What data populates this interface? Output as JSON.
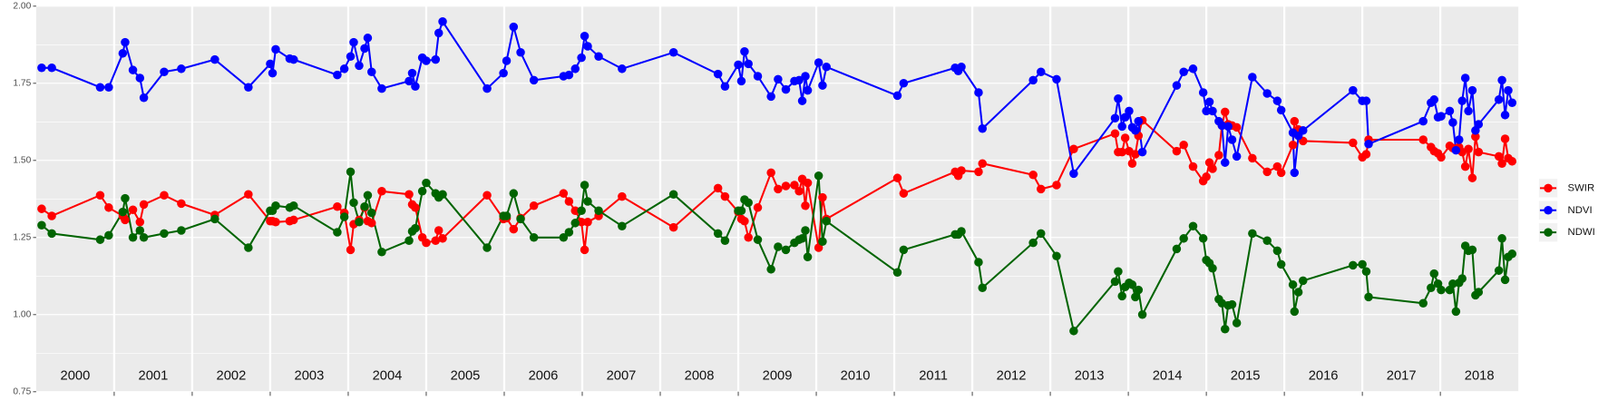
{
  "chart_data": {
    "type": "line",
    "x": [
      2000.07,
      2000.2,
      2000.82,
      2000.93,
      2001.11,
      2001.14,
      2001.24,
      2001.33,
      2001.38,
      2001.64,
      2001.86,
      2002.29,
      2002.72,
      2003.0,
      2003.03,
      2003.07,
      2003.25,
      2003.3,
      2003.86,
      2003.95,
      2004.03,
      2004.07,
      2004.14,
      2004.21,
      2004.25,
      2004.3,
      2004.43,
      2004.78,
      2004.82,
      2004.86,
      2004.95,
      2005.0,
      2005.12,
      2005.16,
      2005.21,
      2005.78,
      2005.99,
      2006.03,
      2006.12,
      2006.21,
      2006.38,
      2006.76,
      2006.83,
      2006.91,
      2006.99,
      2007.03,
      2007.07,
      2007.21,
      2007.51,
      2008.17,
      2008.74,
      2008.83,
      2009.0,
      2009.04,
      2009.08,
      2009.13,
      2009.25,
      2009.42,
      2009.51,
      2009.61,
      2009.72,
      2009.78,
      2009.82,
      2009.86,
      2009.89,
      2010.03,
      2010.08,
      2010.13,
      2011.04,
      2011.12,
      2011.78,
      2011.82,
      2011.86,
      2012.08,
      2012.13,
      2012.78,
      2012.88,
      2013.08,
      2013.3,
      2013.83,
      2013.87,
      2013.92,
      2013.96,
      2014.01,
      2014.05,
      2014.09,
      2014.13,
      2014.18,
      2014.62,
      2014.71,
      2014.83,
      2014.96,
      2015.0,
      2015.04,
      2015.08,
      2015.16,
      2015.2,
      2015.24,
      2015.28,
      2015.33,
      2015.39,
      2015.59,
      2015.78,
      2015.91,
      2015.96,
      2016.11,
      2016.13,
      2016.18,
      2016.24,
      2016.88,
      2017.0,
      2017.05,
      2017.08,
      2017.78,
      2017.88,
      2017.92,
      2017.97,
      2018.01,
      2018.12,
      2018.16,
      2018.2,
      2018.24,
      2018.28,
      2018.32,
      2018.36,
      2018.41,
      2018.45,
      2018.49,
      2018.75,
      2018.79,
      2018.83,
      2018.87,
      2018.92
    ],
    "series": [
      {
        "name": "SWIR",
        "color": "#ff0000",
        "values": [
          1.343,
          1.32,
          1.387,
          1.347,
          1.32,
          1.307,
          1.34,
          1.3,
          1.357,
          1.387,
          1.36,
          1.323,
          1.39,
          1.303,
          1.303,
          1.3,
          1.303,
          1.307,
          1.35,
          1.33,
          1.21,
          1.293,
          1.307,
          1.347,
          1.303,
          1.297,
          1.4,
          1.39,
          1.357,
          1.347,
          1.25,
          1.233,
          1.24,
          1.273,
          1.247,
          1.387,
          1.31,
          1.313,
          1.277,
          1.313,
          1.353,
          1.393,
          1.367,
          1.337,
          1.3,
          1.21,
          1.3,
          1.32,
          1.383,
          1.283,
          1.41,
          1.383,
          1.333,
          1.31,
          1.303,
          1.25,
          1.347,
          1.46,
          1.407,
          1.417,
          1.42,
          1.4,
          1.44,
          1.353,
          1.427,
          1.217,
          1.38,
          1.31,
          1.443,
          1.393,
          1.463,
          1.45,
          1.467,
          1.463,
          1.49,
          1.453,
          1.407,
          1.42,
          1.537,
          1.587,
          1.527,
          1.527,
          1.573,
          1.53,
          1.49,
          1.52,
          1.58,
          1.63,
          1.53,
          1.55,
          1.48,
          1.433,
          1.447,
          1.493,
          1.473,
          1.517,
          1.613,
          1.657,
          1.617,
          1.613,
          1.607,
          1.507,
          1.463,
          1.48,
          1.46,
          1.55,
          1.627,
          1.6,
          1.563,
          1.557,
          1.51,
          1.52,
          1.567,
          1.567,
          1.543,
          1.53,
          1.523,
          1.51,
          1.547,
          1.54,
          1.537,
          1.543,
          1.527,
          1.48,
          1.537,
          1.443,
          1.577,
          1.527,
          1.513,
          1.49,
          1.57,
          1.507,
          1.497
        ]
      },
      {
        "name": "NDVI",
        "color": "#0000ff",
        "values": [
          1.8,
          1.8,
          1.737,
          1.737,
          1.847,
          1.883,
          1.793,
          1.767,
          1.703,
          1.787,
          1.797,
          1.827,
          1.737,
          1.813,
          1.783,
          1.86,
          1.83,
          1.827,
          1.777,
          1.797,
          1.837,
          1.883,
          1.807,
          1.863,
          1.897,
          1.787,
          1.733,
          1.757,
          1.783,
          1.74,
          1.833,
          1.823,
          1.827,
          1.913,
          1.95,
          1.733,
          1.783,
          1.823,
          1.933,
          1.85,
          1.76,
          1.773,
          1.777,
          1.797,
          1.833,
          1.903,
          1.87,
          1.837,
          1.797,
          1.85,
          1.78,
          1.74,
          1.81,
          1.757,
          1.853,
          1.813,
          1.773,
          1.707,
          1.763,
          1.73,
          1.757,
          1.76,
          1.693,
          1.773,
          1.727,
          1.817,
          1.743,
          1.803,
          1.71,
          1.75,
          1.8,
          1.79,
          1.803,
          1.72,
          1.603,
          1.76,
          1.787,
          1.763,
          1.457,
          1.637,
          1.7,
          1.61,
          1.64,
          1.66,
          1.607,
          1.597,
          1.627,
          1.527,
          1.743,
          1.787,
          1.797,
          1.72,
          1.66,
          1.69,
          1.66,
          1.627,
          1.613,
          1.493,
          1.61,
          1.567,
          1.513,
          1.77,
          1.717,
          1.693,
          1.663,
          1.59,
          1.46,
          1.58,
          1.597,
          1.727,
          1.693,
          1.693,
          1.553,
          1.627,
          1.687,
          1.697,
          1.64,
          1.643,
          1.66,
          1.623,
          1.533,
          1.567,
          1.693,
          1.767,
          1.66,
          1.727,
          1.597,
          1.617,
          1.697,
          1.76,
          1.647,
          1.727,
          1.687
        ]
      },
      {
        "name": "NDWI",
        "color": "#006400",
        "values": [
          1.29,
          1.263,
          1.243,
          1.257,
          1.333,
          1.377,
          1.25,
          1.273,
          1.25,
          1.263,
          1.273,
          1.31,
          1.217,
          1.337,
          1.337,
          1.353,
          1.347,
          1.353,
          1.267,
          1.317,
          1.463,
          1.363,
          1.3,
          1.35,
          1.387,
          1.33,
          1.203,
          1.24,
          1.27,
          1.28,
          1.4,
          1.427,
          1.393,
          1.38,
          1.39,
          1.217,
          1.32,
          1.32,
          1.393,
          1.31,
          1.25,
          1.25,
          1.267,
          1.297,
          1.337,
          1.42,
          1.367,
          1.337,
          1.287,
          1.39,
          1.263,
          1.24,
          1.337,
          1.337,
          1.373,
          1.363,
          1.243,
          1.147,
          1.22,
          1.21,
          1.233,
          1.243,
          1.247,
          1.273,
          1.187,
          1.45,
          1.237,
          1.303,
          1.137,
          1.21,
          1.26,
          1.26,
          1.27,
          1.17,
          1.087,
          1.233,
          1.263,
          1.19,
          0.947,
          1.107,
          1.14,
          1.06,
          1.09,
          1.103,
          1.097,
          1.057,
          1.08,
          1.0,
          1.213,
          1.247,
          1.287,
          1.247,
          1.177,
          1.167,
          1.15,
          1.05,
          1.037,
          0.953,
          1.03,
          1.033,
          0.973,
          1.263,
          1.24,
          1.207,
          1.163,
          1.097,
          1.01,
          1.073,
          1.11,
          1.16,
          1.163,
          1.14,
          1.057,
          1.037,
          1.087,
          1.133,
          1.1,
          1.08,
          1.08,
          1.1,
          1.01,
          1.103,
          1.117,
          1.223,
          1.207,
          1.21,
          1.063,
          1.073,
          1.143,
          1.247,
          1.113,
          1.187,
          1.197
        ]
      }
    ],
    "xlim": [
      2000,
      2019
    ],
    "xticks": [
      {
        "value": 2000.5,
        "label": "2000"
      },
      {
        "value": 2001.5,
        "label": "2001"
      },
      {
        "value": 2002.5,
        "label": "2002"
      },
      {
        "value": 2003.5,
        "label": "2003"
      },
      {
        "value": 2004.5,
        "label": "2004"
      },
      {
        "value": 2005.5,
        "label": "2005"
      },
      {
        "value": 2006.5,
        "label": "2006"
      },
      {
        "value": 2007.5,
        "label": "2007"
      },
      {
        "value": 2008.5,
        "label": "2008"
      },
      {
        "value": 2009.5,
        "label": "2009"
      },
      {
        "value": 2010.5,
        "label": "2010"
      },
      {
        "value": 2011.5,
        "label": "2011"
      },
      {
        "value": 2012.5,
        "label": "2012"
      },
      {
        "value": 2013.5,
        "label": "2013"
      },
      {
        "value": 2014.5,
        "label": "2014"
      },
      {
        "value": 2015.5,
        "label": "2015"
      },
      {
        "value": 2016.5,
        "label": "2016"
      },
      {
        "value": 2017.5,
        "label": "2017"
      },
      {
        "value": 2018.5,
        "label": "2018"
      }
    ],
    "ylim": [
      0.75,
      2.0
    ],
    "yticks": [
      {
        "value": 0.75,
        "label": "0.75"
      },
      {
        "value": 1.0,
        "label": "1.00"
      },
      {
        "value": 1.25,
        "label": "1.25"
      },
      {
        "value": 1.5,
        "label": "1.50"
      },
      {
        "value": 1.75,
        "label": "1.75"
      },
      {
        "value": 2.0,
        "label": "2.00"
      }
    ],
    "grid": true,
    "legend": "right"
  }
}
